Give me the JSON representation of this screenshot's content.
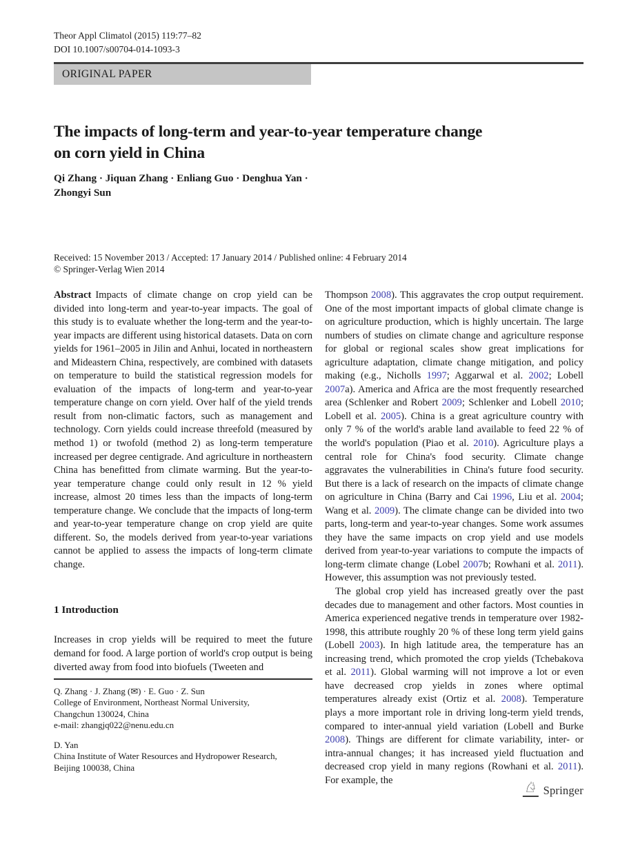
{
  "header": {
    "journal_ref": "Theor Appl Climatol (2015) 119:77–82",
    "doi": "DOI 10.1007/s00704-014-1093-3",
    "category_label": "ORIGINAL PAPER"
  },
  "title": {
    "lines": [
      "The impacts of long-term and year-to-year temperature change",
      "on corn yield in China"
    ]
  },
  "authors": {
    "lines": [
      "Qi Zhang · Jiquan Zhang · Enliang Guo · Denghua Yan ·",
      "Zhongyi Sun"
    ]
  },
  "history": {
    "received_line": "Received: 15 November 2013 / Accepted: 17 January 2014 / Published online: 4 February 2014",
    "copyright": "© Springer-Verlag Wien 2014"
  },
  "abstract": {
    "label": "Abstract",
    "text": "Impacts of climate change on crop yield can be divided into long-term and year-to-year impacts. The goal of this study is to evaluate whether the long-term and the year-to-year impacts are different using historical datasets. Data on corn yields for 1961–2005 in Jilin and Anhui, located in northeastern and Mideastern China, respectively, are combined with datasets on temperature to build the statistical regression models for evaluation of the impacts of long-term and year-to-year temperature change on corn yield. Over half of the yield trends result from non-climatic factors, such as management and technology. Corn yields could increase threefold (measured by method 1) or twofold (method 2) as long-term temperature increased per degree centigrade. And agriculture in northeastern China has benefitted from climate warming. But the year-to-year temperature change could only result in 12 % yield increase, almost 20 times less than the impacts of long-term temperature change. We conclude that the impacts of long-term and year-to-year temperature change on crop yield are quite different. So, the models derived from year-to-year variations cannot be applied to assess the impacts of long-term climate change."
  },
  "introduction": {
    "heading": "1 Introduction",
    "paragraph": "Increases in crop yields will be required to meet the future demand for food. A large portion of world's crop output is being diverted away from food into biofuels (Tweeten and"
  },
  "right_column": {
    "paragraph1": [
      {
        "text": "Thompson "
      },
      {
        "text": "2008",
        "cite": true
      },
      {
        "text": "). This aggravates the crop output requirement. One of the most important impacts of global climate change is on agriculture production, which is highly uncertain. The large numbers of studies on climate change and agriculture response for global or regional scales show great implications for agriculture adaptation, climate change mitigation, and policy making (e.g., Nicholls "
      },
      {
        "text": "1997",
        "cite": true
      },
      {
        "text": "; Aggarwal et al. "
      },
      {
        "text": "2002",
        "cite": true
      },
      {
        "text": "; Lobell "
      },
      {
        "text": "2007",
        "cite": true
      },
      {
        "text": "a). America and Africa are the most frequently researched area (Schlenker and Robert "
      },
      {
        "text": "2009",
        "cite": true
      },
      {
        "text": "; Schlenker and Lobell "
      },
      {
        "text": "2010",
        "cite": true
      },
      {
        "text": "; Lobell et al. "
      },
      {
        "text": "2005",
        "cite": true
      },
      {
        "text": "). China is a great agriculture country with only 7 % of the world's arable land available to feed 22 % of the world's population (Piao et al. "
      },
      {
        "text": "2010",
        "cite": true
      },
      {
        "text": "). Agriculture plays a central role for China's food security. Climate change aggravates the vulnerabilities in China's future food security. But there is a lack of research on the impacts of climate change on agriculture in China (Barry and Cai "
      },
      {
        "text": "1996",
        "cite": true
      },
      {
        "text": ", Liu et al. "
      },
      {
        "text": "2004",
        "cite": true
      },
      {
        "text": "; Wang et al. "
      },
      {
        "text": "2009",
        "cite": true
      },
      {
        "text": "). The climate change can be divided into two parts, long-term and year-to-year changes. Some work assumes they have the same impacts on crop yield and use models derived from year-to-year variations to compute the impacts of long-term climate change (Lobel "
      },
      {
        "text": "2007",
        "cite": true
      },
      {
        "text": "b; Rowhani et al. "
      },
      {
        "text": "2011",
        "cite": true
      },
      {
        "text": "). However, this assumption was not previously tested."
      }
    ],
    "paragraph2": [
      {
        "text": "The global crop yield has increased greatly over the past decades due to management and other factors. Most counties in America experienced negative trends in temperature over 1982-1998, this attribute roughly 20 % of these long term yield gains (Lobell "
      },
      {
        "text": "2003",
        "cite": true
      },
      {
        "text": "). In high latitude area, the temperature has an increasing trend, which promoted the crop yields (Tchebakova et al. "
      },
      {
        "text": "2011",
        "cite": true
      },
      {
        "text": "). Global warming will not improve a lot or even have decreased crop yields in zones where optimal temperatures already exist (Ortiz et al. "
      },
      {
        "text": "2008",
        "cite": true
      },
      {
        "text": "). Temperature plays a more important role in driving long-term yield trends, compared to inter-annual yield variation (Lobell and Burke "
      },
      {
        "text": "2008",
        "cite": true
      },
      {
        "text": "). Things are different for climate variability, inter- or intra-annual changes; it has increased yield fluctuation and decreased crop yield in many regions (Rowhani et al. "
      },
      {
        "text": "2011",
        "cite": true
      },
      {
        "text": "). For example, the"
      }
    ]
  },
  "footnote": {
    "block1": [
      "Q. Zhang · J. Zhang (✉) · E. Guo · Z. Sun",
      "College of Environment, Northeast Normal University,",
      "Changchun 130024, China",
      "e-mail: zhangjq022@nenu.edu.cn"
    ],
    "block2": [
      "D. Yan",
      "China Institute of Water Resources and Hydropower Research,",
      "Beijing 100038, China"
    ]
  },
  "footer": {
    "publisher": "Springer",
    "logo_icon": "chess-knight-icon"
  },
  "colors": {
    "citation_link": "#3c3eae",
    "category_bg": "#c5c5c5",
    "rule": "#3e3e3e"
  }
}
